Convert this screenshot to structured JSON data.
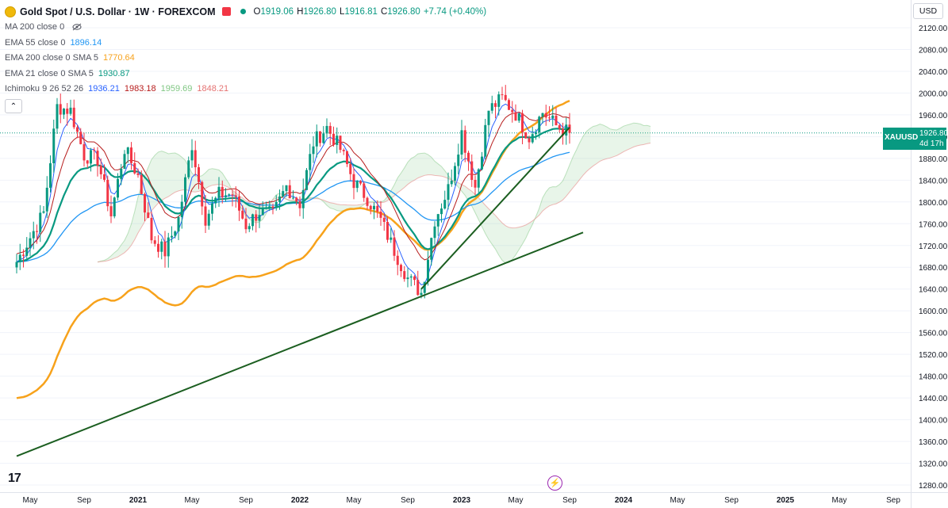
{
  "header": {
    "title": "Gold Spot / U.S. Dollar · 1W · FOREXCOM",
    "ohlc": [
      {
        "k": "O",
        "v": "1919.06"
      },
      {
        "k": "H",
        "v": "1926.80"
      },
      {
        "k": "L",
        "v": "1916.81"
      },
      {
        "k": "C",
        "v": "1926.80"
      }
    ],
    "change": "+7.74 (+0.40%)"
  },
  "indicators": [
    {
      "label": "MA 200 close 0",
      "values": []
    },
    {
      "label": "EMA 55 close 0",
      "values": [
        {
          "v": "1896.14",
          "color": "#2196f3"
        }
      ]
    },
    {
      "label": "EMA 200 close 0 SMA 5",
      "values": [
        {
          "v": "1770.64",
          "color": "#f7a21b"
        }
      ]
    },
    {
      "label": "EMA 21 close 0 SMA 5",
      "values": [
        {
          "v": "1930.87",
          "color": "#089981"
        }
      ]
    },
    {
      "label": "Ichimoku 9 26 52 26",
      "values": [
        {
          "v": "1936.21",
          "color": "#2962ff"
        },
        {
          "v": "1983.18",
          "color": "#b71c1c"
        },
        {
          "v": "1959.69",
          "color": "#81c784"
        },
        {
          "v": "1848.21",
          "color": "#e57373"
        }
      ]
    }
  ],
  "currency": "USD",
  "price_tag": {
    "symbol": "XAUUSD",
    "price": "1926.80",
    "countdown": "4d 17h"
  },
  "logo": "17",
  "colors": {
    "up": "#089981",
    "down": "#f23645",
    "ema55": "#2196f3",
    "ema200": "#f7a21b",
    "ema21": "#089981",
    "tenkan": "#2962ff",
    "kijun": "#b71c1c",
    "spanA": "#81c784",
    "spanB": "#e57373",
    "trend": "#1b5e20"
  },
  "chart_data": {
    "type": "candlestick",
    "yticks": [
      1280,
      1320,
      1360,
      1400,
      1440,
      1480,
      1520,
      1560,
      1600,
      1640,
      1680,
      1720,
      1760,
      1800,
      1840,
      1880,
      1920,
      1960,
      2000,
      2040,
      2080,
      2120
    ],
    "xticks": [
      "May",
      "Sep",
      "2021",
      "May",
      "Sep",
      "2022",
      "May",
      "Sep",
      "2023",
      "May",
      "Sep",
      "2024",
      "May",
      "Sep",
      "2025",
      "May",
      "Sep"
    ],
    "ylim": [
      1262,
      2150
    ],
    "xlim": [
      "2020-04",
      "2025-12"
    ],
    "last_price": 1926.8,
    "ohlc_monthly_close": [
      {
        "t": "2020-04",
        "c": 1690
      },
      {
        "t": "2020-05",
        "c": 1735
      },
      {
        "t": "2020-06",
        "c": 1780
      },
      {
        "t": "2020-07",
        "c": 1975
      },
      {
        "t": "2020-08",
        "c": 1968
      },
      {
        "t": "2020-09",
        "c": 1886
      },
      {
        "t": "2020-10",
        "c": 1878
      },
      {
        "t": "2020-11",
        "c": 1776
      },
      {
        "t": "2020-12",
        "c": 1898
      },
      {
        "t": "2021-01",
        "c": 1848
      },
      {
        "t": "2021-02",
        "c": 1734
      },
      {
        "t": "2021-03",
        "c": 1708
      },
      {
        "t": "2021-04",
        "c": 1769
      },
      {
        "t": "2021-05",
        "c": 1906
      },
      {
        "t": "2021-06",
        "c": 1770
      },
      {
        "t": "2021-07",
        "c": 1814
      },
      {
        "t": "2021-08",
        "c": 1814
      },
      {
        "t": "2021-09",
        "c": 1757
      },
      {
        "t": "2021-10",
        "c": 1783
      },
      {
        "t": "2021-11",
        "c": 1776
      },
      {
        "t": "2021-12",
        "c": 1829
      },
      {
        "t": "2022-01",
        "c": 1797
      },
      {
        "t": "2022-02",
        "c": 1909
      },
      {
        "t": "2022-03",
        "c": 1937
      },
      {
        "t": "2022-04",
        "c": 1897
      },
      {
        "t": "2022-05",
        "c": 1837
      },
      {
        "t": "2022-06",
        "c": 1807
      },
      {
        "t": "2022-07",
        "c": 1766
      },
      {
        "t": "2022-08",
        "c": 1711
      },
      {
        "t": "2022-09",
        "c": 1660
      },
      {
        "t": "2022-10",
        "c": 1633
      },
      {
        "t": "2022-11",
        "c": 1768
      },
      {
        "t": "2022-12",
        "c": 1824
      },
      {
        "t": "2023-01",
        "c": 1928
      },
      {
        "t": "2023-02",
        "c": 1827
      },
      {
        "t": "2023-03",
        "c": 1969
      },
      {
        "t": "2023-04",
        "c": 1990
      },
      {
        "t": "2023-05",
        "c": 1962
      },
      {
        "t": "2023-06",
        "c": 1919
      },
      {
        "t": "2023-07",
        "c": 1965
      },
      {
        "t": "2023-08",
        "c": 1940
      },
      {
        "t": "2023-09",
        "c": 1926.8
      }
    ],
    "trendlines": [
      {
        "from": {
          "t": "2020-04",
          "p": 1333
        },
        "to": {
          "t": "2023-10",
          "p": 1744
        }
      },
      {
        "from": {
          "t": "2022-10",
          "p": 1640
        },
        "to": {
          "t": "2023-09",
          "p": 1937
        }
      }
    ]
  }
}
